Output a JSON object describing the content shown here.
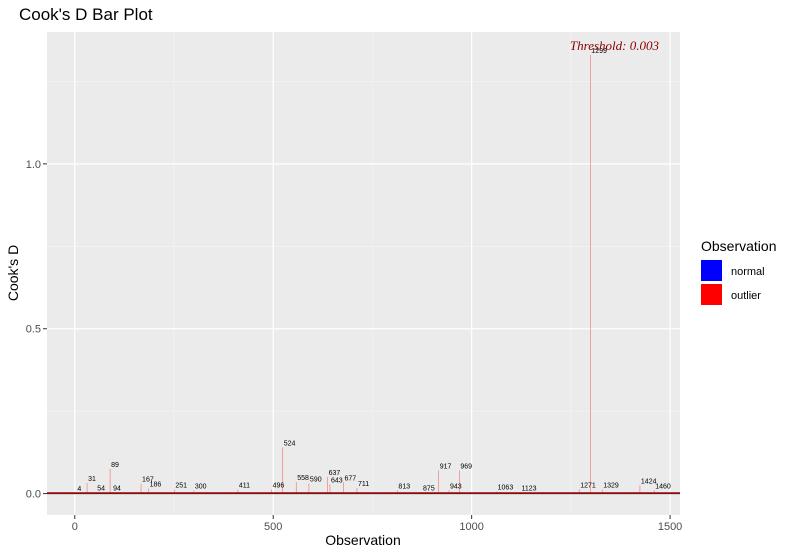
{
  "chart_data": {
    "type": "bar",
    "title": "Cook's D Bar Plot",
    "xlabel": "Observation",
    "ylabel": "Cook's D",
    "xlim": [
      -70,
      1525
    ],
    "ylim": [
      -0.065,
      1.4
    ],
    "x_ticks": [
      0,
      500,
      1000,
      1500
    ],
    "y_ticks": [
      0.0,
      0.5,
      1.0
    ],
    "y_tick_labels": [
      "0.0",
      "0.5",
      "1.0"
    ],
    "threshold": 0.003,
    "threshold_label": "Threshold: 0.003",
    "grid": true,
    "legend": {
      "title": "Observation",
      "position": "right",
      "entries": [
        {
          "label": "normal",
          "color": "#0000ff"
        },
        {
          "label": "outlier",
          "color": "#ff0000"
        }
      ]
    },
    "outliers": [
      {
        "obs": 4,
        "d": 0.002,
        "label": "4"
      },
      {
        "obs": 31,
        "d": 0.032,
        "label": "31"
      },
      {
        "obs": 54,
        "d": 0.004,
        "label": "54"
      },
      {
        "obs": 89,
        "d": 0.075,
        "label": "89"
      },
      {
        "obs": 94,
        "d": 0.004,
        "label": "94"
      },
      {
        "obs": 167,
        "d": 0.03,
        "label": "167"
      },
      {
        "obs": 186,
        "d": 0.015,
        "label": "186"
      },
      {
        "obs": 251,
        "d": 0.012,
        "label": "251"
      },
      {
        "obs": 300,
        "d": 0.009,
        "label": "300"
      },
      {
        "obs": 411,
        "d": 0.012,
        "label": "411"
      },
      {
        "obs": 496,
        "d": 0.012,
        "label": "496"
      },
      {
        "obs": 524,
        "d": 0.14,
        "label": "524"
      },
      {
        "obs": 558,
        "d": 0.035,
        "label": "558"
      },
      {
        "obs": 590,
        "d": 0.03,
        "label": "590"
      },
      {
        "obs": 637,
        "d": 0.05,
        "label": "637"
      },
      {
        "obs": 643,
        "d": 0.028,
        "label": "643"
      },
      {
        "obs": 677,
        "d": 0.034,
        "label": "677"
      },
      {
        "obs": 711,
        "d": 0.017,
        "label": "711"
      },
      {
        "obs": 813,
        "d": 0.01,
        "label": "813"
      },
      {
        "obs": 875,
        "d": 0.004,
        "label": "875"
      },
      {
        "obs": 917,
        "d": 0.07,
        "label": "917"
      },
      {
        "obs": 943,
        "d": 0.01,
        "label": "943"
      },
      {
        "obs": 969,
        "d": 0.07,
        "label": "969"
      },
      {
        "obs": 1063,
        "d": 0.006,
        "label": "1063"
      },
      {
        "obs": 1123,
        "d": 0.004,
        "label": "1123"
      },
      {
        "obs": 1271,
        "d": 0.013,
        "label": "1271"
      },
      {
        "obs": 1299,
        "d": 1.33,
        "label": "1299"
      },
      {
        "obs": 1329,
        "d": 0.012,
        "label": "1329"
      },
      {
        "obs": 1424,
        "d": 0.025,
        "label": "1424"
      },
      {
        "obs": 1460,
        "d": 0.01,
        "label": "1460"
      }
    ]
  }
}
